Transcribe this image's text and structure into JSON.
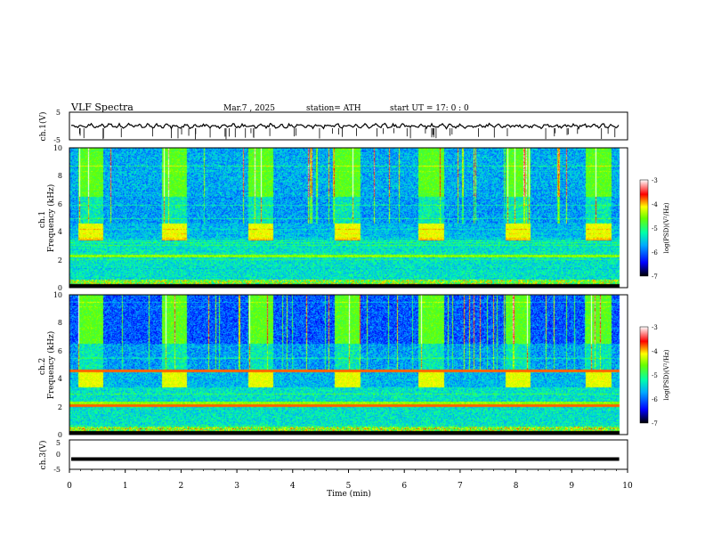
{
  "header": {
    "title": "VLF  Spectra",
    "date": "Mar.7  , 2025",
    "station": "station= ATH",
    "start": "start  UT  =    17: 0   : 0"
  },
  "chart_data": [
    {
      "type": "line",
      "name": "ch1-waveform",
      "ylabel": "ch.1(V)",
      "xlim": [
        0,
        10
      ],
      "ylim": [
        -5,
        5
      ],
      "yticks": [
        "5",
        "-5"
      ],
      "baseline": 0,
      "amplitude": 0.9
    },
    {
      "type": "heatmap",
      "name": "ch1-spectrogram",
      "ylabel": "ch.1\nFrequency  (kHz)",
      "xlim": [
        0,
        10
      ],
      "ylim": [
        0,
        10
      ],
      "yticks": [
        "0",
        "2",
        "4",
        "6",
        "8",
        "10"
      ],
      "burst_times_min": [
        0.15,
        1.65,
        3.2,
        4.75,
        6.25,
        7.8,
        9.25
      ],
      "burst_duration_min": 0.45,
      "burst_band_khz": [
        3.5,
        4.5
      ]
    },
    {
      "type": "heatmap",
      "name": "ch2-spectrogram",
      "ylabel": "ch.2\nFrequency  (kHz)",
      "xlim": [
        0,
        10
      ],
      "ylim": [
        0,
        10
      ],
      "yticks": [
        "0",
        "2",
        "4",
        "6",
        "8",
        "10"
      ],
      "burst_times_min": [
        0.15,
        1.65,
        3.2,
        4.75,
        6.25,
        7.8,
        9.25
      ],
      "burst_duration_min": 0.45,
      "burst_band_khz": [
        3.5,
        4.5
      ]
    },
    {
      "type": "line",
      "name": "ch3-waveform",
      "ylabel": "ch.3(V)",
      "xlabel": "Time  (min)",
      "xlim": [
        0,
        10
      ],
      "ylim": [
        -5,
        5
      ],
      "yticks": [
        "5",
        "0",
        "-5"
      ],
      "baseline": -1.5,
      "xticks": [
        "0",
        "1",
        "2",
        "3",
        "4",
        "5",
        "6",
        "7",
        "8",
        "9",
        "10"
      ]
    }
  ],
  "colorbar": {
    "label": "log(PSD)(V²/Hz)",
    "ticks": [
      "-3",
      "-4",
      "-5",
      "-6",
      "-7"
    ],
    "range": [
      -7,
      -3
    ],
    "colors": [
      "#000000",
      "#0000ff",
      "#00ffff",
      "#00ff00",
      "#ffff00",
      "#ff0000",
      "#ffffff"
    ]
  }
}
